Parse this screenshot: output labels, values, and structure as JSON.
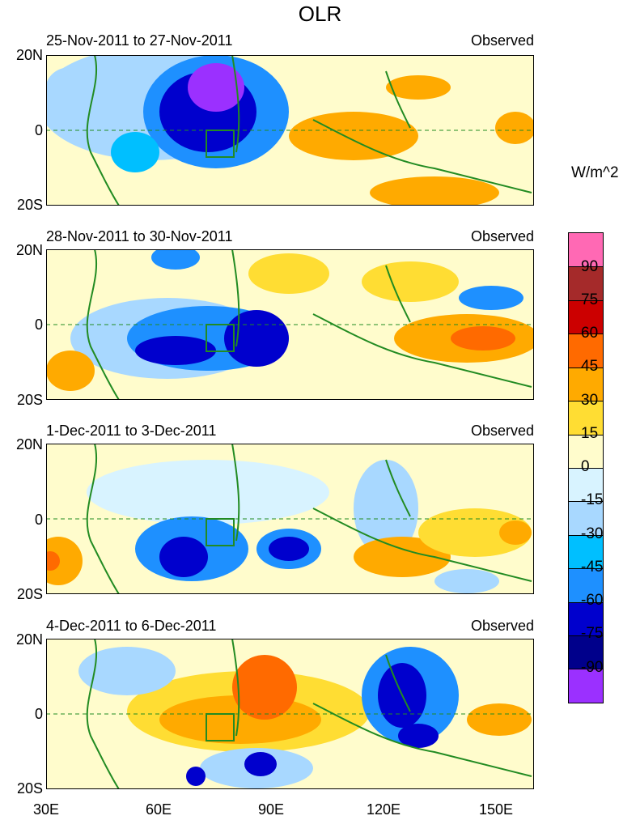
{
  "figure": {
    "title": "OLR",
    "units": "W/m^2"
  },
  "panels": [
    {
      "date_range": "25-Nov-2011 to 27-Nov-2011",
      "tag": "Observed"
    },
    {
      "date_range": "28-Nov-2011 to 30-Nov-2011",
      "tag": "Observed"
    },
    {
      "date_range": "1-Dec-2011 to 3-Dec-2011",
      "tag": "Observed"
    },
    {
      "date_range": "4-Dec-2011 to 6-Dec-2011",
      "tag": "Observed"
    }
  ],
  "axes": {
    "lat_labels": [
      "20N",
      "0",
      "20S"
    ],
    "lon_labels": [
      "30E",
      "60E",
      "90E",
      "120E",
      "150E"
    ]
  },
  "colorbar": {
    "labels": [
      "90",
      "75",
      "60",
      "45",
      "30",
      "15",
      "0",
      "-15",
      "-30",
      "-45",
      "-60",
      "-75",
      "-90"
    ],
    "colors": [
      "#ff69b4",
      "#a52a2a",
      "#cc0000",
      "#ff6a00",
      "#ffaa00",
      "#ffdd33",
      "#fffccc",
      "#d8f3ff",
      "#a8d8ff",
      "#00bfff",
      "#1e90ff",
      "#0000cd",
      "#00008b",
      "#9b30ff"
    ]
  },
  "chart_data": {
    "type": "heatmap",
    "variable": "OLR",
    "lon_range": [
      30,
      160
    ],
    "lat_range": [
      -20,
      20
    ]
  }
}
